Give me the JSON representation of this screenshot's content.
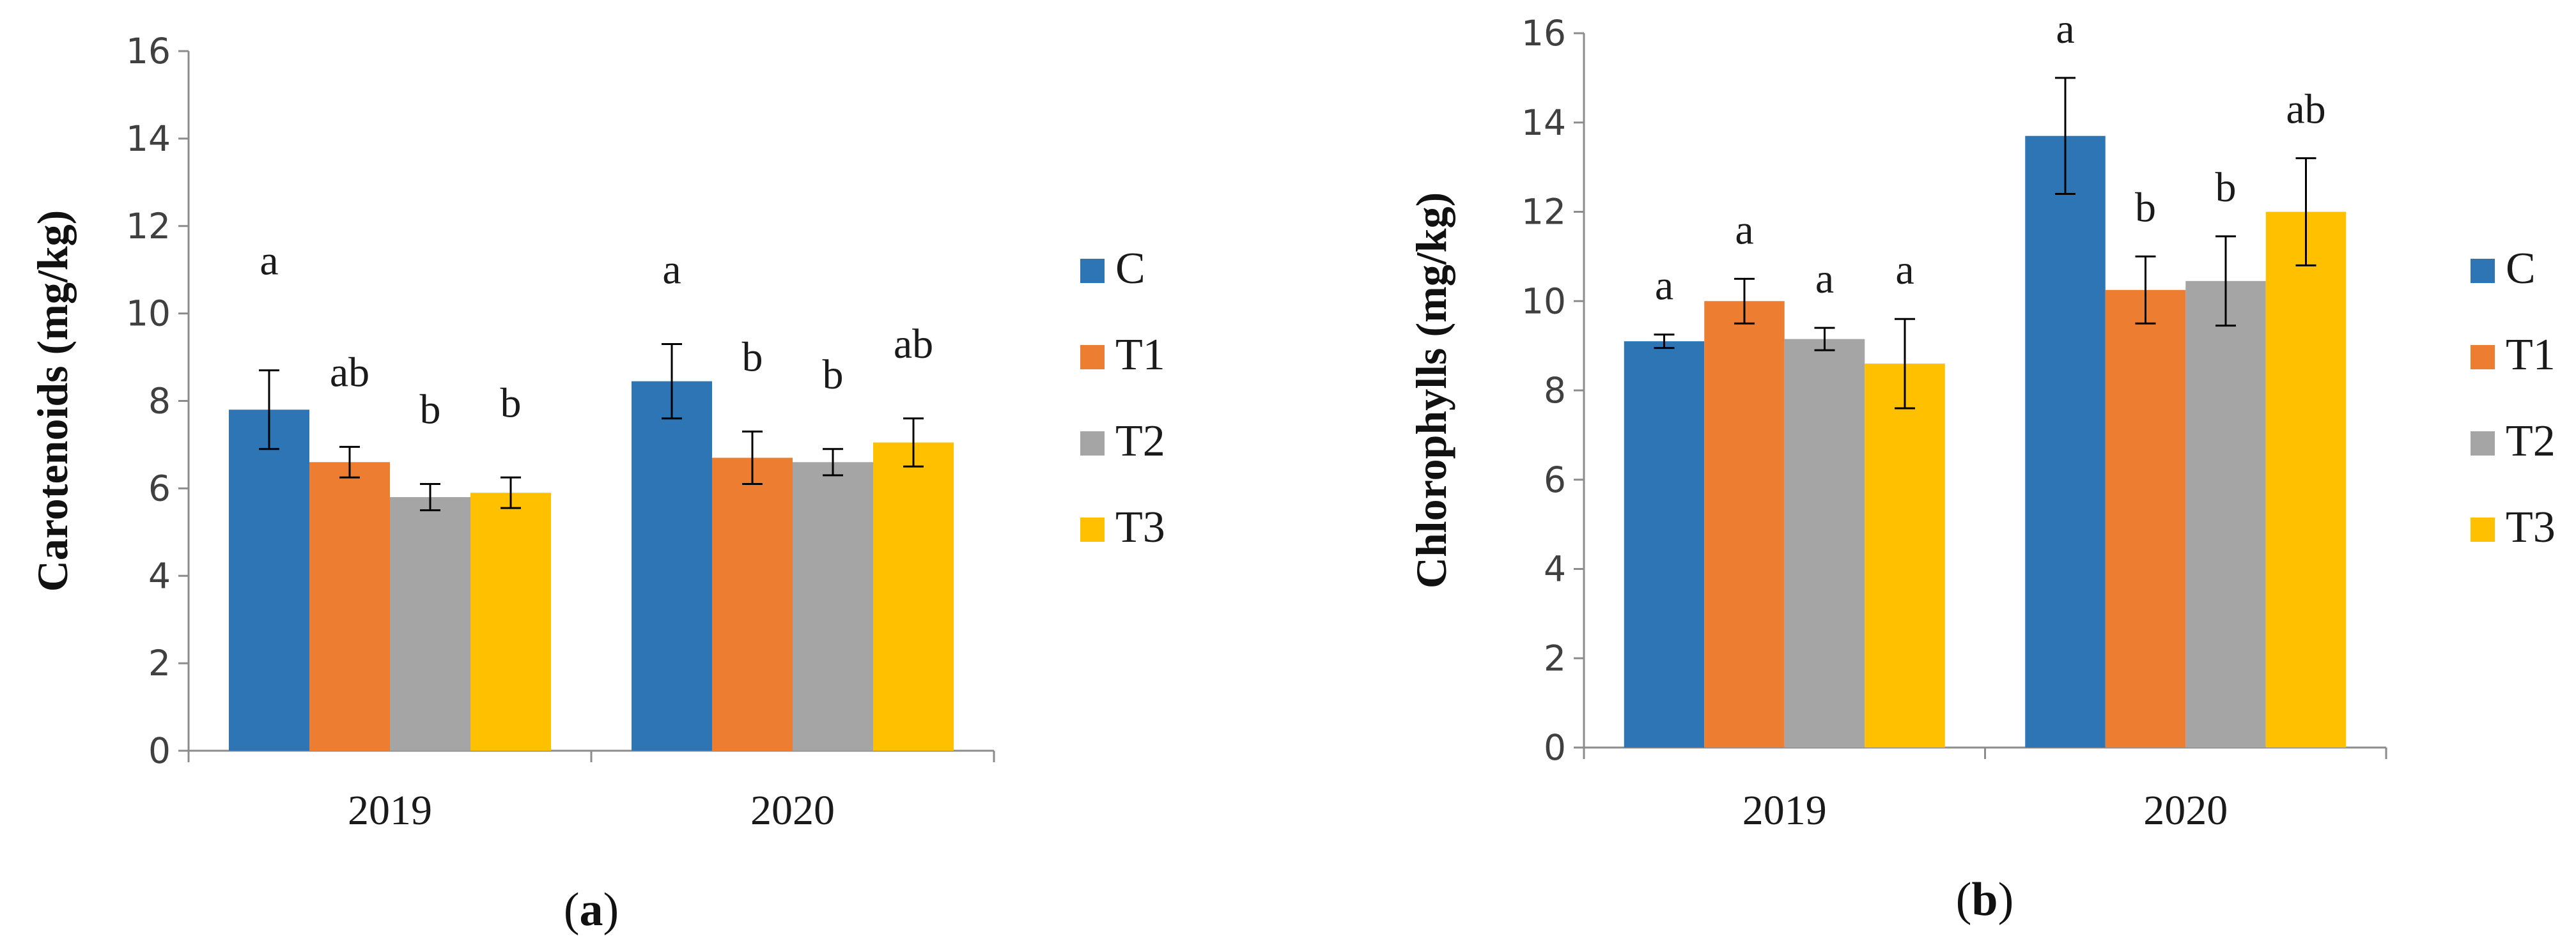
{
  "colors": {
    "C": "#2E75B6",
    "T1": "#ED7D31",
    "T2": "#A5A5A5",
    "T3": "#FFC000"
  },
  "chart_data": [
    {
      "type": "bar",
      "panel_label": "a",
      "ylabel": "Carotenoids (mg/kg)",
      "ylim": [
        0,
        16
      ],
      "yticks": [
        "0",
        "2",
        "4",
        "6",
        "8",
        "10",
        "12",
        "14",
        "16"
      ],
      "categories": [
        "2019",
        "2020"
      ],
      "legend_position": "right",
      "series": [
        {
          "name": "C",
          "values": [
            7.8,
            8.45
          ],
          "errors": [
            0.9,
            0.85
          ],
          "letters": [
            "a",
            "a"
          ]
        },
        {
          "name": "T1",
          "values": [
            6.6,
            6.7
          ],
          "errors": [
            0.35,
            0.6
          ],
          "letters": [
            "ab",
            "b"
          ]
        },
        {
          "name": "T2",
          "values": [
            5.8,
            6.6
          ],
          "errors": [
            0.3,
            0.3
          ],
          "letters": [
            "b",
            "b"
          ]
        },
        {
          "name": "T3",
          "values": [
            5.9,
            7.05
          ],
          "errors": [
            0.35,
            0.55
          ],
          "letters": [
            "b",
            "ab"
          ]
        }
      ]
    },
    {
      "type": "bar",
      "panel_label": "b",
      "ylabel": "Chlorophylls (mg/kg)",
      "ylim": [
        0,
        16
      ],
      "yticks": [
        "0",
        "2",
        "4",
        "6",
        "8",
        "10",
        "12",
        "14",
        "16"
      ],
      "categories": [
        "2019",
        "2020"
      ],
      "legend_position": "right",
      "series": [
        {
          "name": "C",
          "values": [
            9.1,
            13.7
          ],
          "errors": [
            0.15,
            1.3
          ],
          "letters": [
            "a",
            "a"
          ]
        },
        {
          "name": "T1",
          "values": [
            10.0,
            10.25
          ],
          "errors": [
            0.5,
            0.75
          ],
          "letters": [
            "a",
            "b"
          ]
        },
        {
          "name": "T2",
          "values": [
            9.15,
            10.45
          ],
          "errors": [
            0.25,
            1.0
          ],
          "letters": [
            "a",
            "b"
          ]
        },
        {
          "name": "T3",
          "values": [
            8.6,
            12.0
          ],
          "errors": [
            1.0,
            1.2
          ],
          "letters": [
            "a",
            "ab"
          ]
        }
      ]
    }
  ]
}
